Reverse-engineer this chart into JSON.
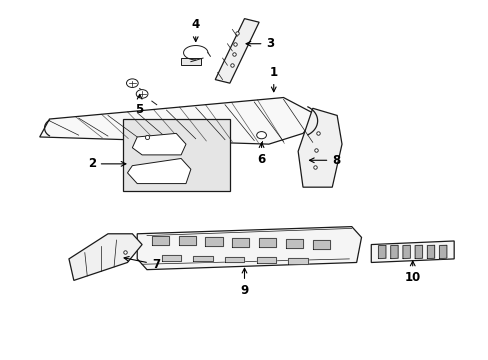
{
  "bg_color": "#ffffff",
  "line_color": "#1a1a1a",
  "fig_width": 4.89,
  "fig_height": 3.6,
  "dpi": 100,
  "label_fontsize": 8.5,
  "lw_main": 0.9,
  "lw_thin": 0.5,
  "lw_med": 0.7,
  "parts_labels": {
    "1": [
      0.56,
      0.77,
      0.56,
      0.83
    ],
    "2": [
      0.26,
      0.56,
      0.22,
      0.56
    ],
    "3": [
      0.52,
      0.87,
      0.57,
      0.87
    ],
    "4": [
      0.42,
      0.91,
      0.42,
      0.87
    ],
    "5": [
      0.27,
      0.76,
      0.31,
      0.73
    ],
    "6": [
      0.53,
      0.58,
      0.53,
      0.64
    ],
    "7": [
      0.37,
      0.26,
      0.33,
      0.26
    ],
    "8": [
      0.65,
      0.55,
      0.61,
      0.55
    ],
    "9": [
      0.5,
      0.19,
      0.5,
      0.23
    ],
    "10": [
      0.82,
      0.23,
      0.82,
      0.27
    ]
  }
}
